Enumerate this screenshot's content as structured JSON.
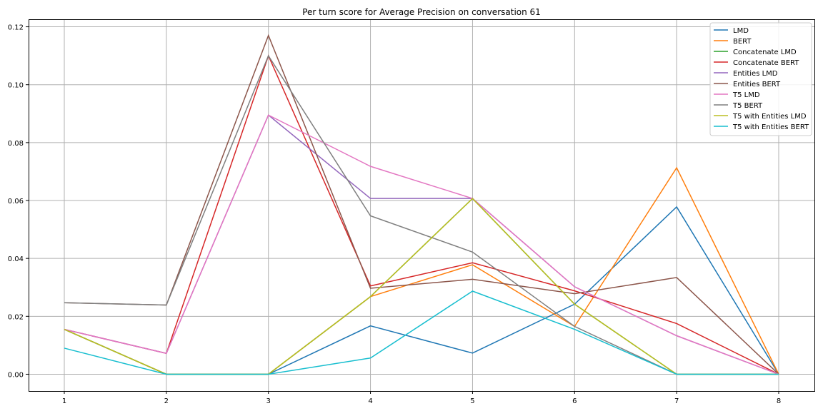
{
  "chart_data": {
    "type": "line",
    "title": "Per turn score for Average Precision on conversation 61",
    "xlabel": "",
    "ylabel": "",
    "x": [
      1,
      2,
      3,
      4,
      5,
      6,
      7,
      8
    ],
    "xlim": [
      0.65,
      8.35
    ],
    "ylim": [
      -0.0058,
      0.1226
    ],
    "xticks": [
      1,
      2,
      3,
      4,
      5,
      6,
      7,
      8
    ],
    "yticks": [
      0,
      0.02,
      0.04,
      0.06,
      0.08,
      0.1,
      0.12
    ],
    "ytick_labels": [
      "0.00",
      "0.02",
      "0.04",
      "0.06",
      "0.08",
      "0.10",
      "0.12"
    ],
    "grid": true,
    "legend_placement": "top-right",
    "series": [
      {
        "name": "LMD",
        "color": "#1f77b4",
        "values": [
          0.0155,
          0,
          0,
          0.0167,
          0.0073,
          0.0242,
          0.0578,
          0
        ]
      },
      {
        "name": "BERT",
        "color": "#ff7f0e",
        "values": [
          0.0155,
          0,
          0,
          0.0268,
          0.0378,
          0.0165,
          0.0713,
          0
        ]
      },
      {
        "name": "Concatenate LMD",
        "color": "#2ca02c",
        "values": [
          0.0155,
          0,
          0,
          0.0268,
          0.0607,
          0.0242,
          0,
          0
        ]
      },
      {
        "name": "Concatenate BERT",
        "color": "#d62728",
        "values": [
          0.0155,
          0.0072,
          0.11,
          0.0305,
          0.0385,
          0.0288,
          0.0175,
          0
        ]
      },
      {
        "name": "Entities LMD",
        "color": "#9467bd",
        "values": [
          0.0155,
          0.0072,
          0.0895,
          0.0607,
          0.0607,
          0.0302,
          0.0133,
          0
        ]
      },
      {
        "name": "Entities BERT",
        "color": "#8c564b",
        "values": [
          0.0247,
          0.0239,
          0.117,
          0.0297,
          0.0328,
          0.0278,
          0.0334,
          0
        ]
      },
      {
        "name": "T5 LMD",
        "color": "#e377c2",
        "values": [
          0.0155,
          0.0072,
          0.0895,
          0.0718,
          0.0607,
          0.0302,
          0.0133,
          0
        ]
      },
      {
        "name": "T5 BERT",
        "color": "#7f7f7f",
        "values": [
          0.0247,
          0.0239,
          0.11,
          0.0547,
          0.0422,
          0.0165,
          0,
          0
        ]
      },
      {
        "name": "T5 with Entities LMD",
        "color": "#bcbd22",
        "values": [
          0.0155,
          0,
          0,
          0.0268,
          0.0607,
          0.0242,
          0,
          0
        ]
      },
      {
        "name": "T5 with Entities BERT",
        "color": "#17becf",
        "values": [
          0.009,
          0,
          0,
          0.0056,
          0.0287,
          0.0155,
          0,
          0
        ]
      }
    ]
  }
}
